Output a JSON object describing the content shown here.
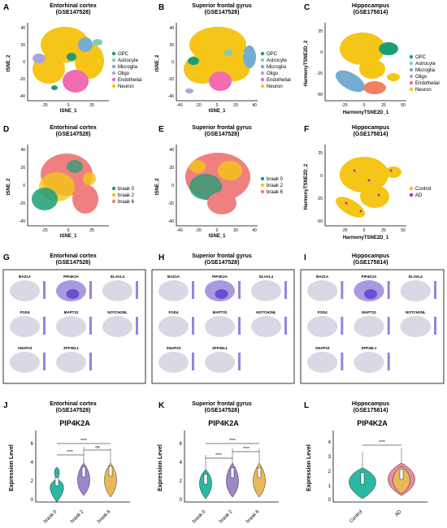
{
  "panels_row1": [
    {
      "letter": "A",
      "title": "Entorhinal cortex",
      "gse": "(GSE147528)",
      "xlabel": "tSNE_1",
      "ylabel": "tSNE_2",
      "xticks": [
        "-25",
        "0",
        "25"
      ],
      "yticks": [
        "40",
        "20",
        "0",
        "-20",
        "-40"
      ]
    },
    {
      "letter": "B",
      "title": "Superior frontal gyrus",
      "gse": "(GSE147528)",
      "xlabel": "tSNE_1",
      "ylabel": "tSNE_2",
      "xticks": [
        "-40",
        "-20",
        "0",
        "20",
        "40"
      ],
      "yticks": [
        "40",
        "20",
        "0",
        "-20",
        "-40"
      ]
    },
    {
      "letter": "C",
      "title": "Hippocampus",
      "gse": "(GSE175814)",
      "xlabel": "HarmonyTSNE2D_1",
      "ylabel": "HarmonyTSNE2D_2",
      "xticks": [
        "-25",
        "0",
        "25",
        "50"
      ],
      "yticks": [
        "25",
        "0",
        "-25",
        "-50"
      ]
    }
  ],
  "celltype_legend": [
    {
      "label": "OPC",
      "color": "#1b9e77"
    },
    {
      "label": "Astrocyte",
      "color": "#7fcdbb"
    },
    {
      "label": "Microglia",
      "color": "#74add1"
    },
    {
      "label": "Oligo",
      "color": "#a6a6d8"
    },
    {
      "label": "Endothelial",
      "color": "#f06bb0"
    },
    {
      "label": "Neuron",
      "color": "#f5c518"
    }
  ],
  "panels_row2": [
    {
      "letter": "D",
      "title": "Entorhinal cortex",
      "gse": "(GSE147528)",
      "xlabel": "tSNE_1",
      "ylabel": "tSNE_2",
      "xticks": [
        "-25",
        "0",
        "25"
      ],
      "yticks": [
        "40",
        "20",
        "0",
        "-20",
        "-40"
      ]
    },
    {
      "letter": "E",
      "title": "Superior frontal gyrus",
      "gse": "(GSE147528)",
      "xlabel": "tSNE_1",
      "ylabel": "tSNE_2",
      "xticks": [
        "-40",
        "-20",
        "0",
        "20",
        "40"
      ],
      "yticks": [
        "40",
        "20",
        "0",
        "-20",
        "-40"
      ]
    },
    {
      "letter": "F",
      "title": "Hippocampus",
      "gse": "(GSE175814)",
      "xlabel": "HarmonyTSNE2D_1",
      "ylabel": "HarmonyTSNE2D_2",
      "xticks": [
        "-25",
        "0",
        "25",
        "50"
      ],
      "yticks": [
        "25",
        "0",
        "-25",
        "-50"
      ]
    }
  ],
  "braak_legend": [
    {
      "label": "braak 0",
      "color": "#1b9e77"
    },
    {
      "label": "braak 2",
      "color": "#f5c518"
    },
    {
      "label": "braak 6",
      "color": "#f08080"
    }
  ],
  "ad_legend": [
    {
      "label": "Control",
      "color": "#f5c518"
    },
    {
      "label": "AD",
      "color": "#9c3fa0"
    }
  ],
  "panels_row3": [
    {
      "letter": "G",
      "title": "Entorhinal cortex",
      "gse": "(GSE147528)"
    },
    {
      "letter": "H",
      "title": "Superior frontal gyrus",
      "gse": "(GSE147528)"
    },
    {
      "letter": "I",
      "title": "Hippocampus",
      "gse": "(GSE175814)"
    }
  ],
  "genes": [
    "BAZ1A",
    "PIP4K2A",
    "ELAVL4",
    "FGD4",
    "MAPT22",
    "NOTCH2NL",
    "SNAP23",
    "ZFP36L1"
  ],
  "panels_row4": [
    {
      "letter": "J",
      "title": "Entorhinal cortex",
      "gse": "(GSE147528)",
      "gene": "PIP4K2A",
      "ylabel": "Expression Level",
      "yticks": [
        "6",
        "4",
        "2",
        "0"
      ],
      "categories": [
        "braak 0",
        "braak 2",
        "braak 6"
      ],
      "sig": [
        "****",
        "****",
        "ns"
      ]
    },
    {
      "letter": "K",
      "title": "Superior frontal gyrus",
      "gse": "(GSE147528)",
      "gene": "PIP4K2A",
      "ylabel": "Expression Level",
      "yticks": [
        "6",
        "4",
        "2",
        "0"
      ],
      "categories": [
        "braak 0",
        "braak 2",
        "braak 6"
      ],
      "sig": [
        "****",
        "****",
        "****"
      ]
    },
    {
      "letter": "L",
      "title": "Hippocampus",
      "gse": "(GSE175814)",
      "gene": "PIP4K2A",
      "ylabel": "Expression Level",
      "yticks": [
        "4",
        "3",
        "2",
        "1",
        "0"
      ],
      "categories": [
        "Control",
        "AD"
      ],
      "sig": [
        "****"
      ]
    }
  ],
  "violin_colors": {
    "v1": "#2bb8a3",
    "v2": "#9b87c9",
    "v3": "#e8b85a",
    "ctl": "#2bb8a3",
    "ad": "#e98aa0"
  }
}
